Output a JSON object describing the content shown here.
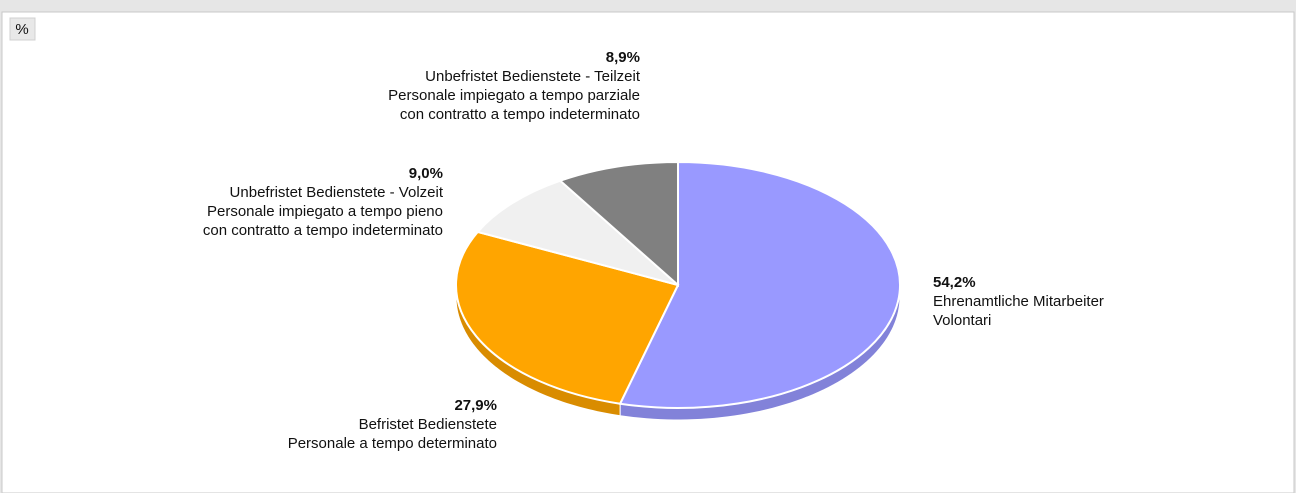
{
  "chart_data": {
    "type": "pie",
    "title": "%",
    "categories": [
      [
        "Ehrenamtliche Mitarbeiter",
        "Volontari"
      ],
      [
        "Befristet Bedienstete",
        "Personale a tempo determinato"
      ],
      [
        "Unbefristet Bedienstete - Volzeit",
        "Personale impiegato a tempo pieno",
        "con contratto a tempo indeterminato"
      ],
      [
        "Unbefristet Bedienstete - Teilzeit",
        "Personale impiegato a tempo parziale",
        "con contratto a tempo indeterminato"
      ]
    ],
    "values": [
      54.2,
      27.9,
      9.0,
      8.9
    ],
    "value_labels": [
      "54,2%",
      "27,9%",
      "9,0%",
      "8,9%"
    ],
    "colors": [
      "#9999ff",
      "#ffa500",
      "#f0f0f0",
      "#808080"
    ]
  }
}
